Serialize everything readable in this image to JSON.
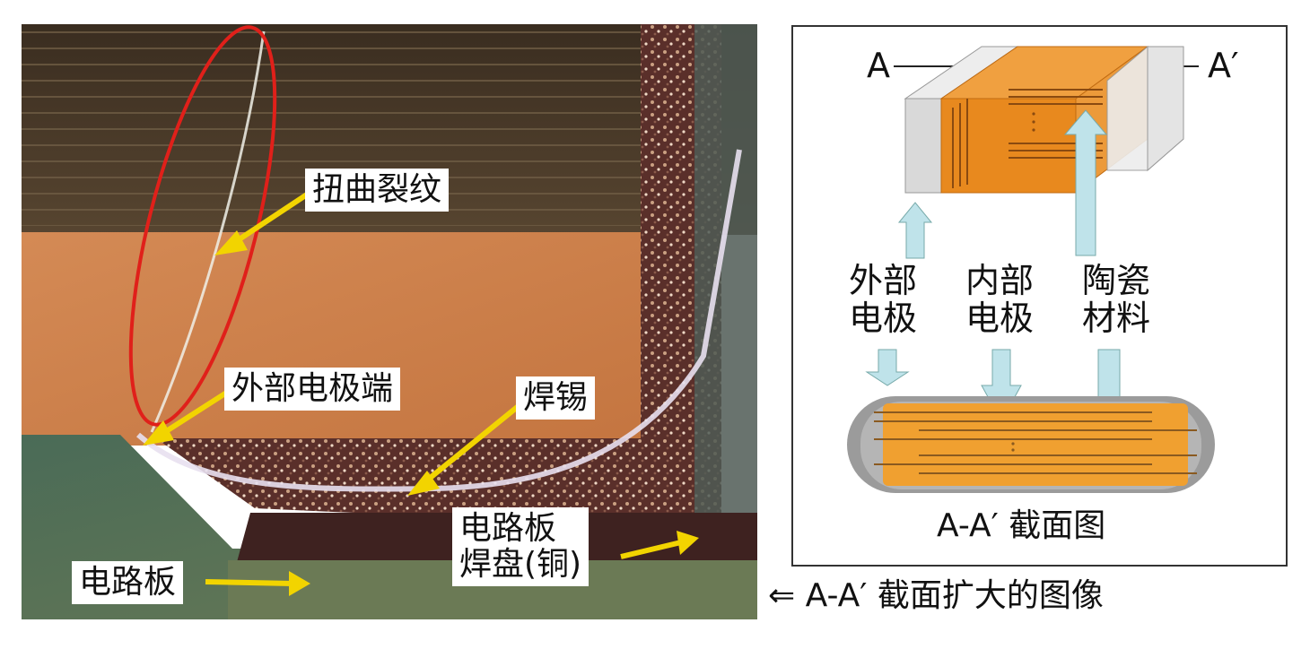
{
  "photo_labels": {
    "twist_crack": "扭曲裂纹",
    "external_electrode_end": "外部电极端",
    "solder": "焊锡",
    "circuit_board": "电路板",
    "board_pad": "电路板\n焊盘(铜)"
  },
  "diagram": {
    "line_start": "A",
    "line_end": "A′",
    "external_electrode": "外部\n电极",
    "internal_electrode": "内部\n电极",
    "ceramic_material": "陶瓷\n材料",
    "cross_section_title": "A-A′ 截面图"
  },
  "caption": "⇐ A-A′ 截面扩大的图像",
  "colors": {
    "orange": "#e8891e",
    "arrow_yellow": "#f2d400",
    "arrow_blue": "#bfe3ea",
    "ellipse_red": "#e0201a",
    "board_green": "#4f6a55",
    "terminal_grey": "#9b9b9b"
  }
}
